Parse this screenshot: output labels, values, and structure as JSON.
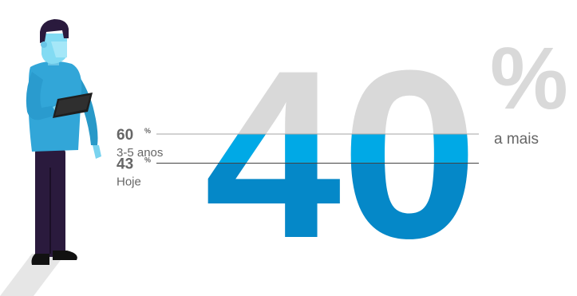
{
  "chart_data": {
    "type": "bar",
    "headline_value": "40",
    "headline_unit": "%",
    "headline_caption": "a mais",
    "unit_symbol": "%",
    "ylim": [
      0,
      100
    ],
    "points": [
      {
        "value": 60,
        "value_label": "60",
        "label": "3-5 anos"
      },
      {
        "value": 43,
        "value_label": "43",
        "label": "Hoje"
      }
    ]
  },
  "colors": {
    "background_digits": "#d9d9d9",
    "fill_light": "#00a9e6",
    "fill_dark": "#0588c8",
    "text_gray": "#666666",
    "line_gray": "#a6a6a6"
  },
  "illustration": {
    "icon": "person-holding-tablet-icon"
  }
}
